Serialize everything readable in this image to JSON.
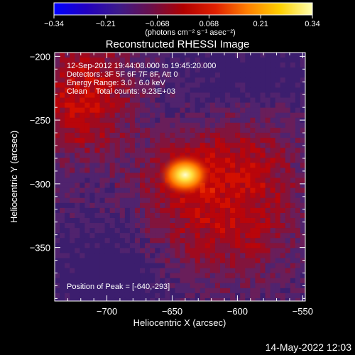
{
  "chart_data": {
    "type": "heatmap",
    "title": "Reconstructed RHESSI Image",
    "xlabel": "Heliocentric X (arcsec)",
    "ylabel": "Heliocentric Y (arcsec)",
    "xlim": [
      -740,
      -548
    ],
    "ylim": [
      -392,
      -197
    ],
    "x_ticks": [
      -700,
      -650,
      -600,
      -550
    ],
    "y_ticks": [
      -200,
      -250,
      -300,
      -350
    ],
    "x_tick_labels": [
      "−700",
      "−650",
      "−600",
      "−550"
    ],
    "y_tick_labels": [
      "−200",
      "−250",
      "−300",
      "−350"
    ],
    "colorbar": {
      "min": -0.34,
      "max": 0.34,
      "tick_labels": [
        "−0.34",
        "−0.21",
        "−0.068",
        "0.068",
        "0.21",
        "0.34"
      ],
      "unit_label": "(photons cm⁻² s⁻¹ asec⁻²)",
      "colors": [
        "#0000ff",
        "#2200c0",
        "#3c1a8a",
        "#6a0f4a",
        "#b00000",
        "#e02000",
        "#ff8000",
        "#ffd000",
        "#ffffb0"
      ]
    },
    "peak": {
      "x": -640,
      "y": -293
    },
    "annotations": [
      "12-Sep-2012 19:44:08.000 to 19:45:20.000",
      "Detectors: 3F 5F 6F 7F 8F, Att 0",
      "Energy Range: 3.0 - 6.0 keV",
      "Clean    Total counts: 9.23E+03"
    ],
    "peak_label": "Position of Peak = [-640,-293]",
    "grid": false
  },
  "footer": {
    "timestamp": "14-May-2022 12:03"
  }
}
